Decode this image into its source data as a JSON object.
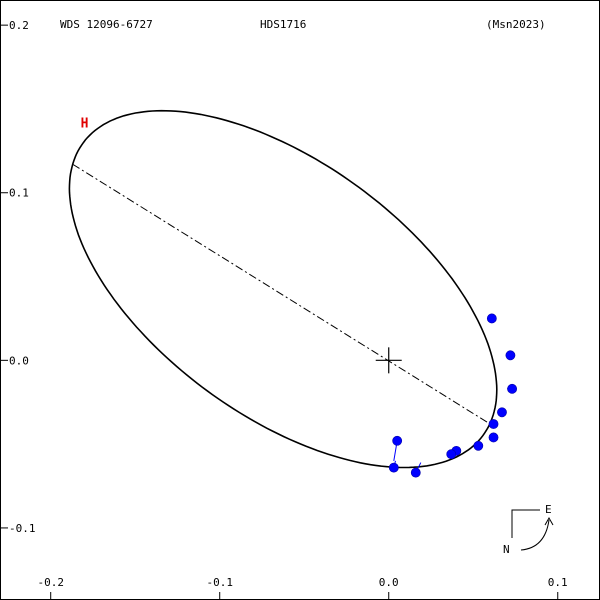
{
  "chart_data": {
    "type": "scatter",
    "title_left": "WDS 12096-6727",
    "title_center": "HDS1716",
    "title_right": "(Msn2023)",
    "xlim": [
      -0.23,
      0.125
    ],
    "ylim": [
      -0.143,
      0.215
    ],
    "x_ticks": [
      -0.2,
      -0.1,
      0.0,
      0.1
    ],
    "x_tick_labels": [
      "-0.2",
      "-0.1",
      "0.0",
      "0.1"
    ],
    "y_ticks": [
      0.2,
      0.1,
      0.0,
      -0.1
    ],
    "y_tick_labels": [
      "0.2",
      "0.1",
      "0.0",
      "-0.1"
    ],
    "orbit": {
      "center": [
        -0.0625,
        0.0425
      ],
      "semi_major": 0.147,
      "semi_minor": 0.0755,
      "orientation_deg": -36.5,
      "color": "#000000"
    },
    "line_of_apsides": {
      "from": [
        -0.187,
        0.117
      ],
      "to": [
        0.06,
        -0.038
      ],
      "style": "dash-dot",
      "color": "#000000"
    },
    "primary_marker": {
      "x": 0.0,
      "y": 0.0,
      "symbol": "+"
    },
    "periastron_label": {
      "text": "H",
      "x": -0.18,
      "y": 0.139,
      "color": "#e00000"
    },
    "observations": [
      {
        "x": 0.061,
        "y": 0.025,
        "ox": 0.062,
        "oy": 0.024
      },
      {
        "x": 0.072,
        "y": 0.003,
        "ox": 0.071,
        "oy": 0.002
      },
      {
        "x": 0.073,
        "y": -0.017,
        "ox": 0.07,
        "oy": -0.017
      },
      {
        "x": 0.067,
        "y": -0.031,
        "ox": 0.066,
        "oy": -0.031
      },
      {
        "x": 0.062,
        "y": -0.038,
        "ox": 0.062,
        "oy": -0.038
      },
      {
        "x": 0.062,
        "y": -0.046,
        "ox": 0.06,
        "oy": -0.045
      },
      {
        "x": 0.053,
        "y": -0.051,
        "ox": 0.053,
        "oy": -0.051
      },
      {
        "x": 0.04,
        "y": -0.054,
        "ox": 0.04,
        "oy": -0.054
      },
      {
        "x": 0.037,
        "y": -0.056,
        "ox": 0.037,
        "oy": -0.056
      },
      {
        "x": 0.005,
        "y": -0.048,
        "ox": 0.003,
        "oy": -0.06
      },
      {
        "x": 0.003,
        "y": -0.064,
        "ox": 0.004,
        "oy": -0.06
      },
      {
        "x": 0.016,
        "y": -0.067,
        "ox": 0.019,
        "oy": -0.061
      }
    ],
    "observation_color": "#0000ff",
    "compass": {
      "east_label": "E",
      "north_label": "N"
    },
    "grid": false,
    "legend": "none"
  }
}
